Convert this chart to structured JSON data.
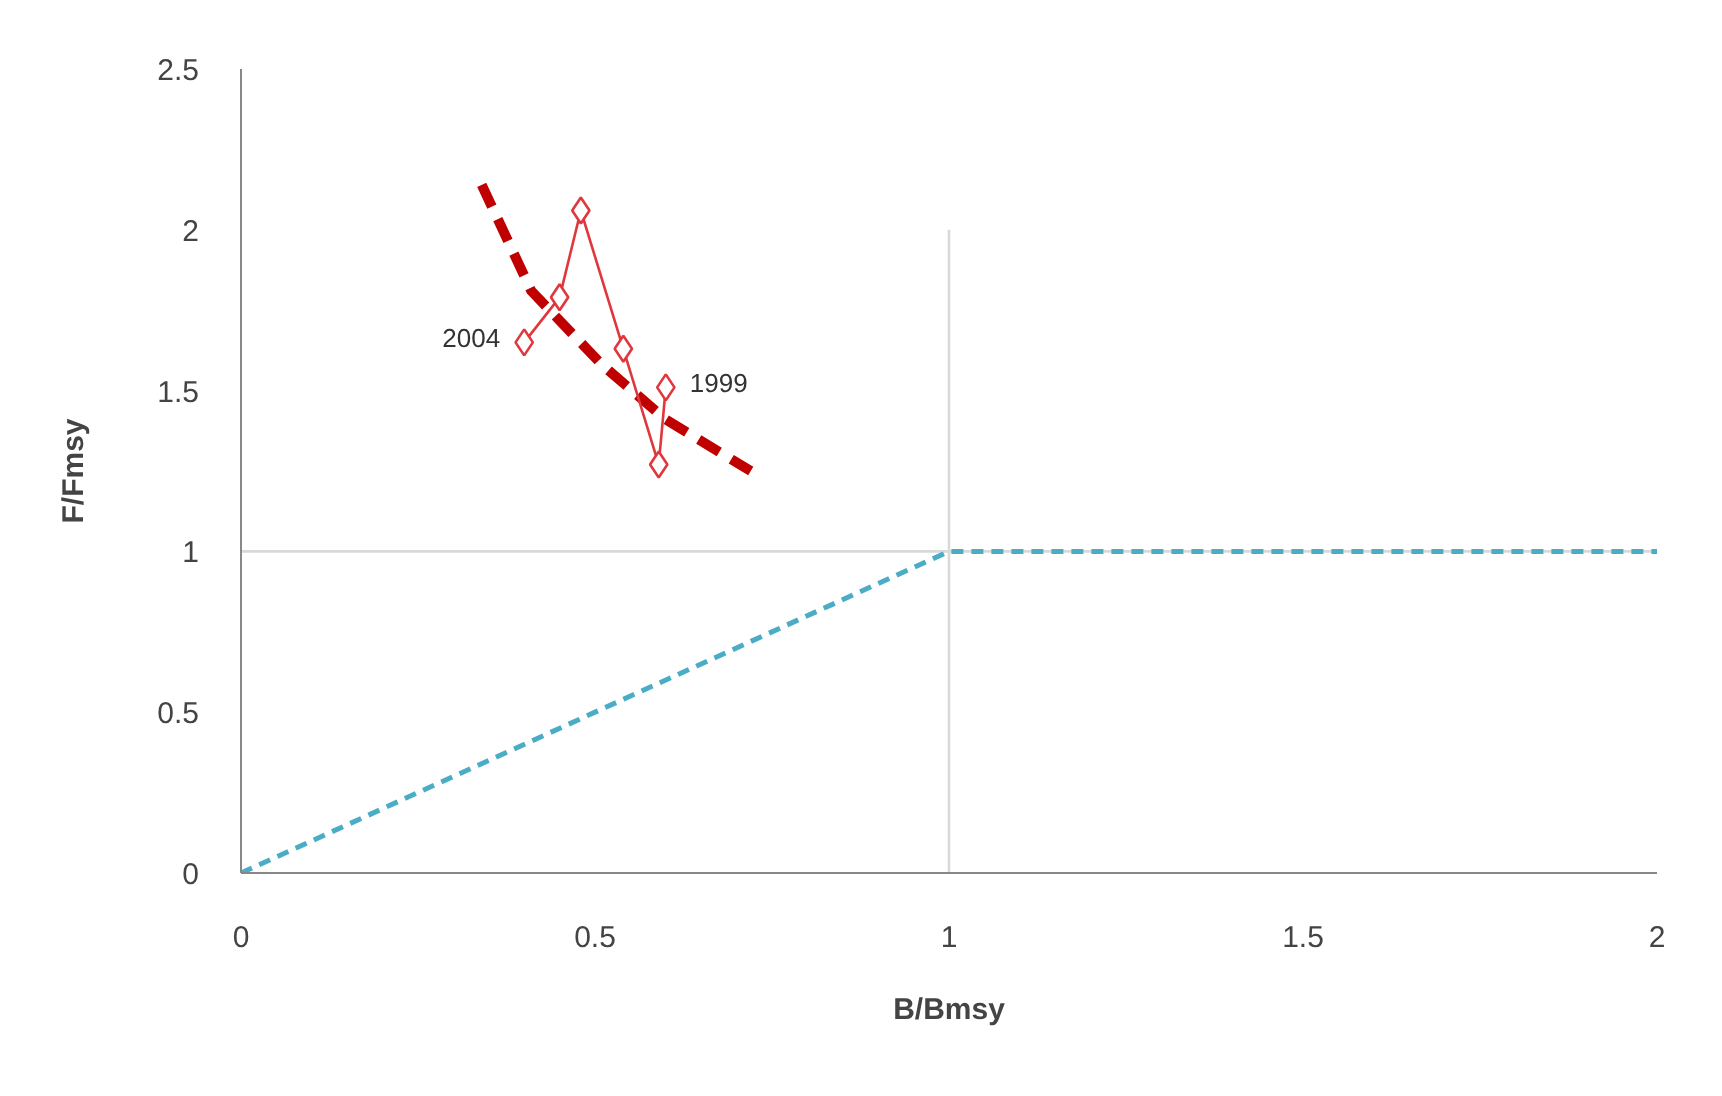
{
  "chart_data": {
    "type": "line",
    "xlabel": "B/Bmsy",
    "ylabel": "F/Fmsy",
    "xlim": [
      0,
      2
    ],
    "ylim": [
      0,
      2.5
    ],
    "xticks": [
      0,
      0.5,
      1,
      1.5,
      2
    ],
    "yticks": [
      0,
      0.5,
      1,
      1.5,
      2,
      2.5
    ],
    "grid": false,
    "series": [
      {
        "color": "#d9d9d9",
        "x": [
          1,
          1
        ],
        "values": [
          0,
          2
        ],
        "marker": "none",
        "line_style": "solid"
      },
      {
        "color": "#d9d9d9",
        "x": [
          0,
          2
        ],
        "values": [
          1,
          1
        ],
        "marker": "none",
        "line_style": "solid"
      },
      {
        "color": "#4bacc6",
        "x": [
          0,
          1,
          2
        ],
        "values": [
          0,
          1,
          1
        ],
        "marker": "none",
        "line_style": "dashed"
      },
      {
        "color": "#c00000",
        "x": [
          0.34,
          0.41,
          0.51,
          0.6,
          0.72
        ],
        "values": [
          2.14,
          1.81,
          1.58,
          1.41,
          1.25
        ],
        "marker": "none",
        "line_style": "dashed"
      },
      {
        "color": "#e0373c",
        "x": [
          0.6,
          0.59,
          0.54,
          0.48,
          0.45,
          0.4
        ],
        "values": [
          1.51,
          1.27,
          1.63,
          2.06,
          1.79,
          1.65
        ],
        "marker": "diamond",
        "line_style": "solid"
      }
    ],
    "annotations": [
      {
        "text": "1999",
        "x": 0.6,
        "y": 1.51
      },
      {
        "text": "2004",
        "x": 0.4,
        "y": 1.65
      }
    ]
  }
}
